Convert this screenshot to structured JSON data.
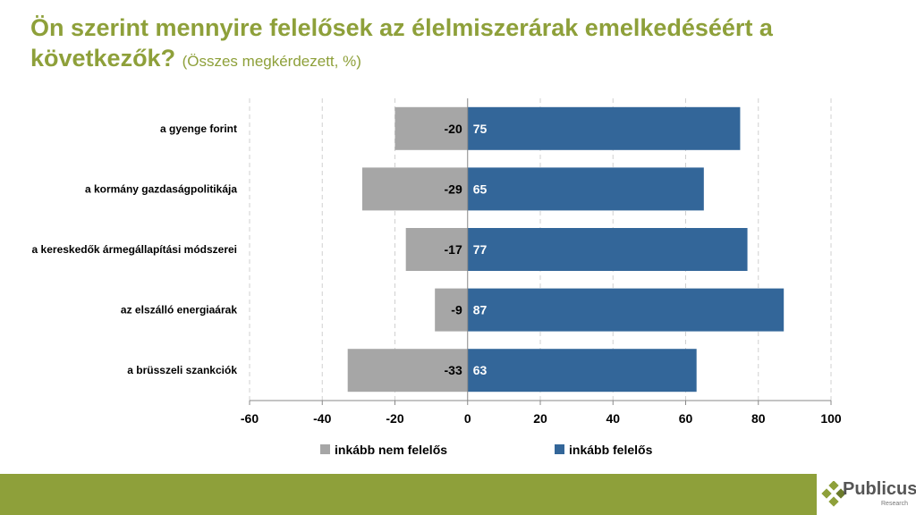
{
  "title": {
    "main": "Ön szerint mennyire felelősek az élelmiszerárak emelkedéséért a következők?",
    "sub": "(Összes megkérdezett, %)"
  },
  "chart_data": {
    "type": "bar",
    "orientation": "horizontal-diverging",
    "categories": [
      "a gyenge forint",
      "a kormány gazdaságpolitikája",
      "a kereskedők ármegállapítási módszerei",
      "az elszálló energiaárak",
      "a brüsszeli szankciók"
    ],
    "series": [
      {
        "name": "inkább nem felelős",
        "values": [
          -20,
          -29,
          -17,
          -9,
          -33
        ],
        "color": "#a6a6a6"
      },
      {
        "name": "inkább felelős",
        "values": [
          75,
          65,
          77,
          87,
          63
        ],
        "color": "#336699"
      }
    ],
    "xlim": [
      -60,
      100
    ],
    "xticks": [
      "-60",
      "-40",
      "-20",
      "0",
      "20",
      "40",
      "60",
      "80",
      "100"
    ],
    "grid": "vertical dashed",
    "legend": "bottom"
  },
  "logo": {
    "name": "Publicus",
    "sub": "Research"
  }
}
